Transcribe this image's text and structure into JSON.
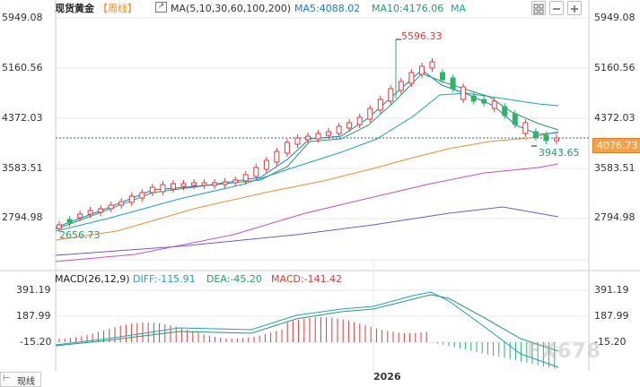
{
  "header": {
    "symbol": "现货黄金",
    "period": "【周线】",
    "ma_label": "MA(5,10,30,60,100,200)",
    "ma5": "MA5:4088.02",
    "ma10": "MA10:4176.06",
    "ma_extra": "MA"
  },
  "price_axis": {
    "left": [
      "5949.08",
      "5160.56",
      "4372.03",
      "3583.51",
      "2794.98"
    ],
    "right": [
      "5949.08",
      "5160.56",
      "4372.03",
      "3583.51",
      "2794.98"
    ],
    "current": "4076.73"
  },
  "annotations": {
    "high": "5596.33",
    "low_recent": "3943.65",
    "low_start": "2656.73"
  },
  "macd": {
    "title": "MACD(26,12,9)",
    "diff": "DIFF:-115.91",
    "dea": "DEA:-45.20",
    "macd": "MACD:-141.42",
    "left_axis": [
      "391.19",
      "187.99",
      "-15.20"
    ],
    "right_axis": [
      "391.19",
      "187.99",
      "-15.20"
    ]
  },
  "footer": {
    "year_label": "2026",
    "ruler_label": "现线"
  },
  "watermark": "FX678",
  "colors": {
    "up": "#e23a3a",
    "down": "#2fb26b",
    "ma5": "#1e7bd6",
    "ma10": "#2a9b68",
    "ma30": "#1fa3b6",
    "ma60": "#f28b32",
    "ma100": "#c84fc2",
    "ma200": "#6a5bd1"
  }
}
